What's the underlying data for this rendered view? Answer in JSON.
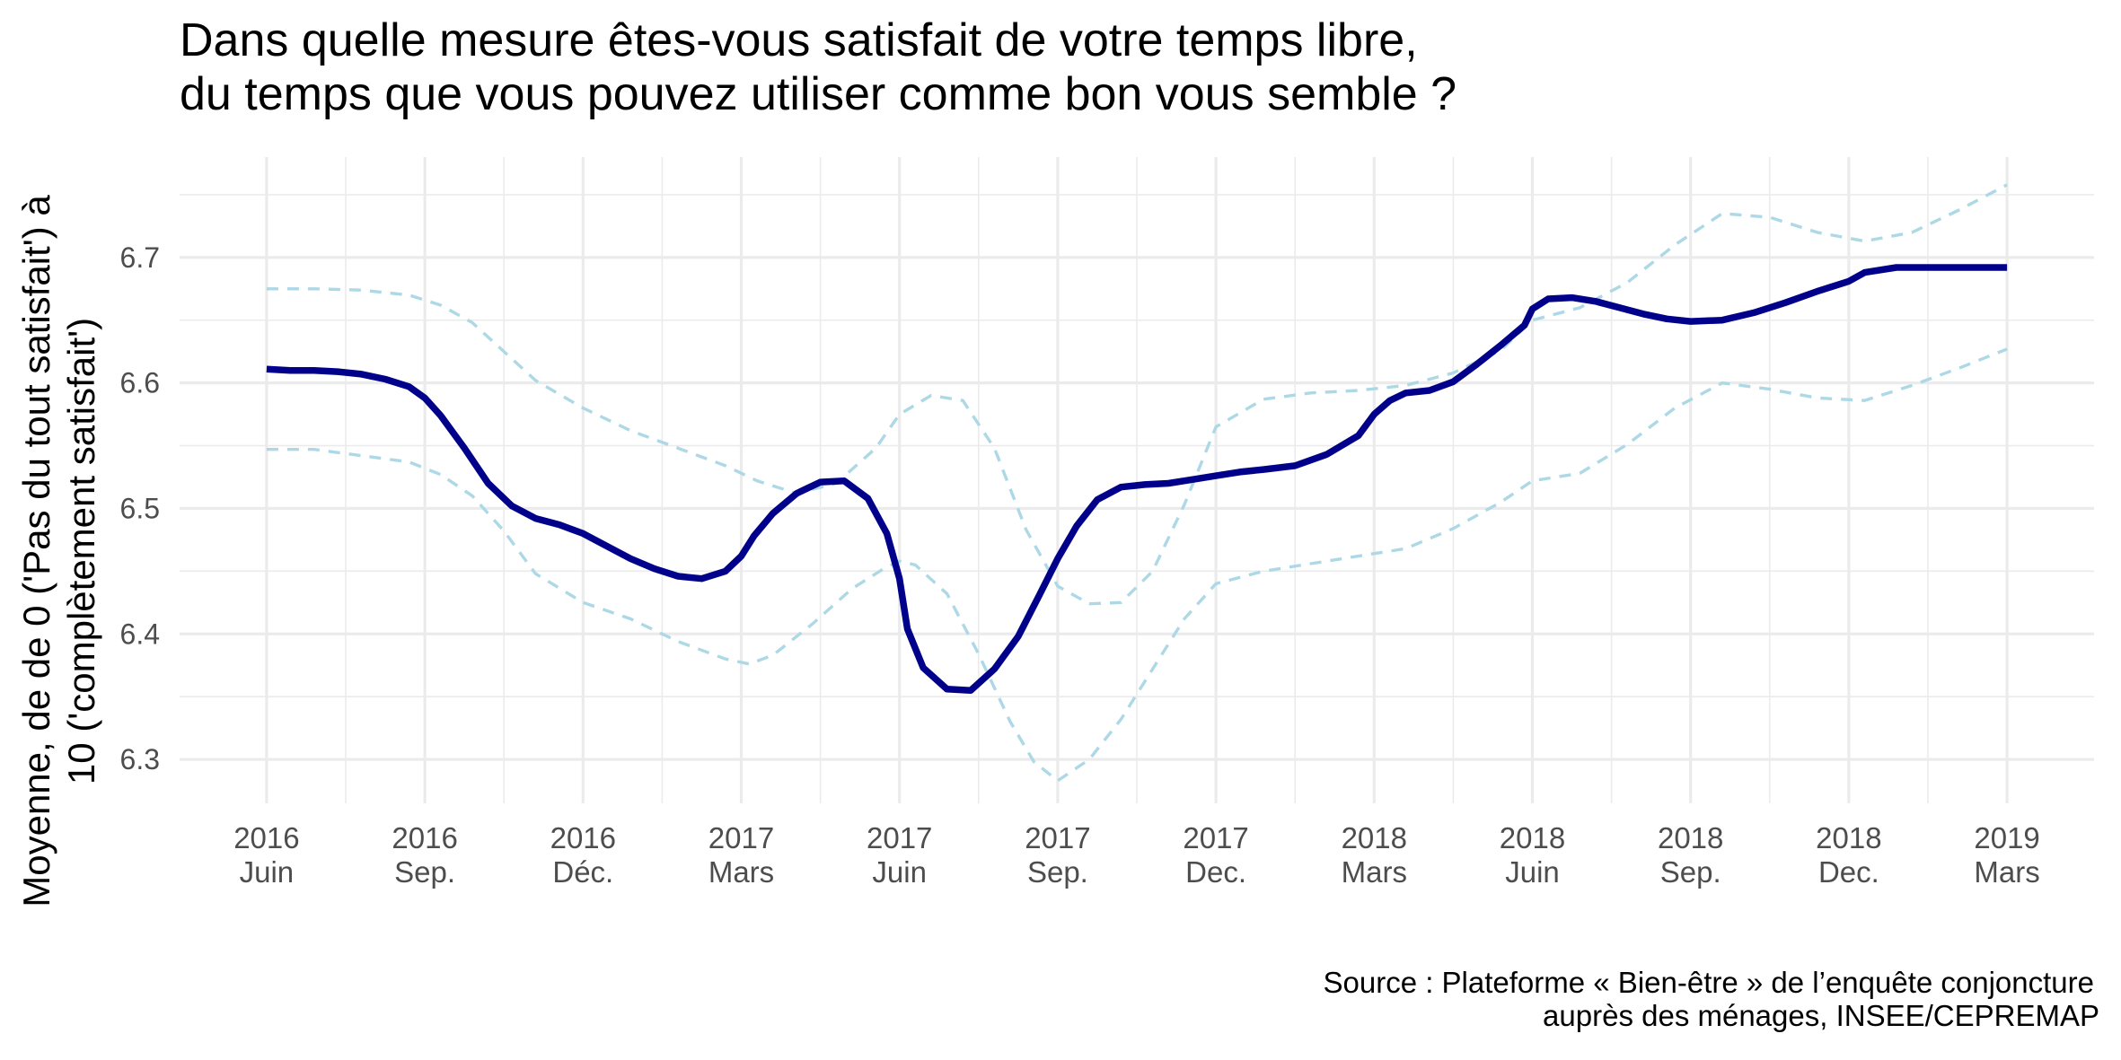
{
  "chart_data": {
    "type": "line",
    "title_lines": [
      "Dans quelle mesure êtes-vous satisfait de votre temps libre,",
      "du temps que vous pouvez utiliser comme bon vous semble ?"
    ],
    "ylabel_lines": [
      "Moyenne, de de 0 ('Pas du tout satisfait') à",
      "10 ('complètement satisfait')"
    ],
    "caption_lines": [
      "Source : Plateforme « Bien-être » de l’enquête conjoncture",
      "auprès des ménages, INSEE/CEPREMAP"
    ],
    "ylim": [
      6.265,
      6.78
    ],
    "xlim": [
      -0.55,
      11.55
    ],
    "y_ticks": [
      6.3,
      6.4,
      6.5,
      6.6,
      6.7
    ],
    "y_tick_labels": [
      "6.3",
      "6.4",
      "6.5",
      "6.6",
      "6.7"
    ],
    "y_minor_ticks": [
      6.35,
      6.45,
      6.55,
      6.65,
      6.75
    ],
    "x_ticks": [
      {
        "pos": 0,
        "label": "2016\nJuin"
      },
      {
        "pos": 1,
        "label": "2016\nSep."
      },
      {
        "pos": 2,
        "label": "2016\nDéc."
      },
      {
        "pos": 3,
        "label": "2017\nMars"
      },
      {
        "pos": 4,
        "label": "2017\nJuin"
      },
      {
        "pos": 5,
        "label": "2017\nSep."
      },
      {
        "pos": 6,
        "label": "2017\nDec."
      },
      {
        "pos": 7,
        "label": "2018\nMars"
      },
      {
        "pos": 8,
        "label": "2018\nJuin"
      },
      {
        "pos": 9,
        "label": "2018\nSep."
      },
      {
        "pos": 10,
        "label": "2018\nDec."
      },
      {
        "pos": 11,
        "label": "2019\nMars"
      }
    ],
    "grid": true,
    "legend": "none",
    "colors": {
      "mean": "#00008b",
      "ci": "#add8e6",
      "grid": "#ebebeb",
      "tick_text": "#4d4d4d"
    },
    "series": [
      {
        "role": "mean",
        "style": "solid",
        "x": [
          0,
          0.15,
          0.3,
          0.45,
          0.6,
          0.75,
          0.9,
          1.0,
          1.1,
          1.25,
          1.4,
          1.55,
          1.7,
          1.85,
          2.0,
          2.15,
          2.3,
          2.45,
          2.6,
          2.75,
          2.9,
          3.0,
          3.08,
          3.2,
          3.35,
          3.5,
          3.65,
          3.8,
          3.92,
          4.0,
          4.05,
          4.15,
          4.3,
          4.45,
          4.6,
          4.75,
          4.88,
          5.0,
          5.12,
          5.25,
          5.4,
          5.55,
          5.7,
          5.85,
          6.0,
          6.15,
          6.3,
          6.5,
          6.7,
          6.9,
          7.0,
          7.1,
          7.2,
          7.35,
          7.5,
          7.65,
          7.8,
          7.95,
          8.0,
          8.1,
          8.25,
          8.4,
          8.55,
          8.7,
          8.85,
          9.0,
          9.2,
          9.4,
          9.6,
          9.8,
          10.0,
          10.1,
          10.3,
          10.5,
          10.7,
          10.9,
          11.0
        ],
        "y": [
          6.611,
          6.61,
          6.61,
          6.609,
          6.607,
          6.603,
          6.597,
          6.588,
          6.574,
          6.548,
          6.52,
          6.502,
          6.492,
          6.487,
          6.48,
          6.47,
          6.46,
          6.452,
          6.446,
          6.444,
          6.45,
          6.462,
          6.478,
          6.496,
          6.512,
          6.521,
          6.522,
          6.508,
          6.48,
          6.444,
          6.404,
          6.373,
          6.356,
          6.355,
          6.372,
          6.398,
          6.43,
          6.46,
          6.486,
          6.507,
          6.517,
          6.519,
          6.52,
          6.523,
          6.526,
          6.529,
          6.531,
          6.534,
          6.543,
          6.558,
          6.575,
          6.586,
          6.592,
          6.594,
          6.601,
          6.615,
          6.63,
          6.646,
          6.659,
          6.667,
          6.668,
          6.665,
          6.66,
          6.655,
          6.651,
          6.649,
          6.65,
          6.656,
          6.664,
          6.673,
          6.681,
          6.688,
          6.692,
          6.692,
          6.692,
          6.692,
          6.692
        ]
      },
      {
        "role": "upper bound",
        "style": "dashed",
        "x": [
          0,
          0.3,
          0.6,
          0.9,
          1.1,
          1.3,
          1.5,
          1.7,
          2.0,
          2.3,
          2.6,
          2.9,
          3.1,
          3.35,
          3.6,
          3.85,
          4.0,
          4.2,
          4.4,
          4.6,
          4.8,
          5.0,
          5.2,
          5.4,
          5.6,
          5.8,
          6.0,
          6.3,
          6.6,
          6.9,
          7.2,
          7.5,
          7.8,
          8.0,
          8.3,
          8.6,
          8.9,
          9.2,
          9.5,
          9.8,
          10.1,
          10.4,
          10.7,
          11.0
        ],
        "y": [
          6.675,
          6.675,
          6.674,
          6.67,
          6.662,
          6.648,
          6.625,
          6.602,
          6.58,
          6.562,
          6.548,
          6.534,
          6.522,
          6.512,
          6.52,
          6.548,
          6.575,
          6.59,
          6.586,
          6.548,
          6.483,
          6.438,
          6.424,
          6.425,
          6.45,
          6.503,
          6.565,
          6.587,
          6.592,
          6.594,
          6.598,
          6.608,
          6.626,
          6.65,
          6.66,
          6.68,
          6.71,
          6.735,
          6.732,
          6.72,
          6.713,
          6.72,
          6.738,
          6.758
        ]
      },
      {
        "role": "lower bound",
        "style": "dashed",
        "x": [
          0,
          0.3,
          0.6,
          0.9,
          1.1,
          1.3,
          1.5,
          1.7,
          2.0,
          2.3,
          2.6,
          2.9,
          3.05,
          3.2,
          3.45,
          3.7,
          3.9,
          4.0,
          4.1,
          4.3,
          4.5,
          4.7,
          4.85,
          5.0,
          5.2,
          5.4,
          5.6,
          5.8,
          6.0,
          6.3,
          6.6,
          6.9,
          7.2,
          7.5,
          7.8,
          8.0,
          8.3,
          8.6,
          8.9,
          9.2,
          9.5,
          9.8,
          10.1,
          10.4,
          10.7,
          11.0
        ],
        "y": [
          6.547,
          6.547,
          6.542,
          6.537,
          6.527,
          6.51,
          6.482,
          6.448,
          6.425,
          6.412,
          6.394,
          6.38,
          6.376,
          6.383,
          6.408,
          6.436,
          6.452,
          6.458,
          6.455,
          6.432,
          6.384,
          6.33,
          6.298,
          6.283,
          6.3,
          6.332,
          6.372,
          6.412,
          6.44,
          6.45,
          6.456,
          6.462,
          6.468,
          6.484,
          6.505,
          6.522,
          6.528,
          6.551,
          6.58,
          6.6,
          6.595,
          6.588,
          6.586,
          6.598,
          6.612,
          6.627
        ]
      }
    ]
  }
}
